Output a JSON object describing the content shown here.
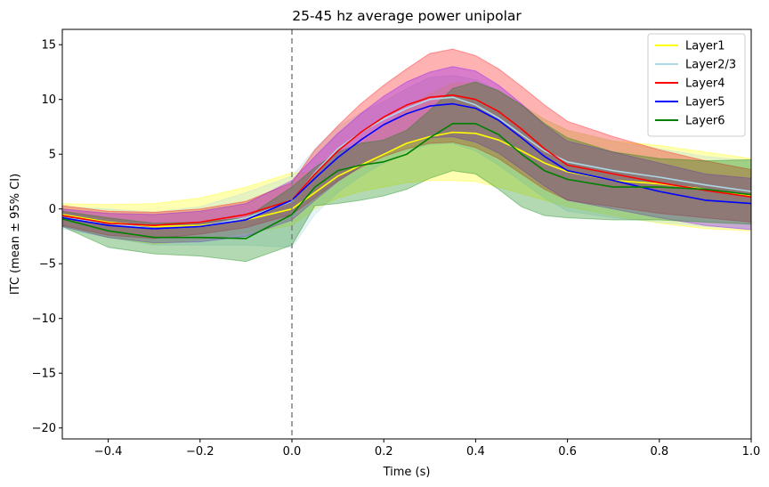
{
  "chart_data": {
    "type": "line",
    "title": "25-45 hz average power unipolar",
    "xlabel": "Time (s)",
    "ylabel": "ITC (mean ± 95% CI)",
    "xlim": [
      -0.5,
      1.0
    ],
    "ylim": [
      -21,
      16.4
    ],
    "xticks": [
      -0.4,
      -0.2,
      0.0,
      0.2,
      0.4,
      0.6,
      0.8,
      1.0
    ],
    "xtick_labels": [
      "−0.4",
      "−0.2",
      "0.0",
      "0.2",
      "0.4",
      "0.6",
      "0.8",
      "1.0"
    ],
    "yticks": [
      15,
      10,
      5,
      0,
      -5,
      -10,
      -15,
      -20
    ],
    "ytick_labels": [
      "15",
      "10",
      "5",
      "0",
      "−5",
      "−10",
      "−15",
      "−20"
    ],
    "grid": false,
    "legend_position": "top-right",
    "vline": {
      "x": 0.0,
      "style": "dashed",
      "color": "#808080"
    },
    "x": [
      -0.5,
      -0.4,
      -0.3,
      -0.2,
      -0.1,
      0.0,
      0.05,
      0.1,
      0.15,
      0.2,
      0.25,
      0.3,
      0.35,
      0.4,
      0.45,
      0.5,
      0.55,
      0.6,
      0.7,
      0.8,
      0.9,
      1.0
    ],
    "series": [
      {
        "name": "Layer1",
        "color": "#ffff00",
        "fill": "#ffff00",
        "fill_opacity": 0.3,
        "mean": [
          -0.5,
          -1.2,
          -1.6,
          -1.5,
          -1.0,
          0.0,
          1.5,
          3.0,
          4.0,
          5.0,
          6.0,
          6.6,
          7.0,
          6.9,
          6.3,
          5.3,
          4.2,
          3.4,
          2.6,
          2.3,
          1.8,
          1.2
        ],
        "lower": [
          -1.5,
          -2.6,
          -3.2,
          -2.8,
          -2.2,
          -1.5,
          0.0,
          1.0,
          1.6,
          2.0,
          2.4,
          2.6,
          2.6,
          2.5,
          2.0,
          1.4,
          0.8,
          0.2,
          -0.6,
          -1.3,
          -1.8,
          -2.0
        ],
        "upper": [
          0.5,
          0.4,
          0.5,
          1.0,
          2.0,
          3.3,
          3.3,
          4.6,
          6.0,
          7.5,
          9.2,
          10.5,
          11.5,
          11.5,
          10.8,
          9.5,
          8.2,
          7.2,
          6.2,
          5.8,
          5.2,
          4.6
        ]
      },
      {
        "name": "Layer2/3",
        "color": "#add8e6",
        "fill": "#add8e6",
        "fill_opacity": 0.3,
        "mean": [
          -0.8,
          -1.3,
          -1.8,
          -1.6,
          -0.8,
          0.7,
          3.3,
          5.5,
          7.0,
          8.2,
          9.2,
          10.0,
          10.2,
          9.5,
          8.3,
          6.8,
          5.3,
          4.3,
          3.5,
          2.9,
          2.2,
          1.6
        ],
        "lower": [
          -1.8,
          -2.6,
          -3.3,
          -3.3,
          -3.3,
          -3.5,
          -0.5,
          1.5,
          3.0,
          4.2,
          5.3,
          5.9,
          6.0,
          5.3,
          4.0,
          2.5,
          1.0,
          -0.2,
          -0.8,
          -1.2,
          -1.6,
          -1.8
        ],
        "upper": [
          0.2,
          0.0,
          -0.3,
          0.2,
          1.5,
          3.0,
          5.5,
          7.5,
          8.8,
          9.8,
          11.0,
          12.0,
          12.2,
          11.8,
          10.8,
          9.5,
          8.2,
          7.2,
          6.2,
          5.5,
          4.8,
          4.4
        ]
      },
      {
        "name": "Layer4",
        "color": "#ff0000",
        "fill": "#ff0000",
        "fill_opacity": 0.3,
        "mean": [
          -0.6,
          -1.3,
          -1.5,
          -1.2,
          -0.5,
          0.8,
          3.2,
          5.3,
          7.0,
          8.4,
          9.5,
          10.2,
          10.4,
          10.0,
          8.9,
          7.3,
          5.5,
          4.0,
          3.2,
          2.4,
          1.7,
          1.1
        ],
        "lower": [
          -1.5,
          -2.4,
          -2.7,
          -2.3,
          -1.7,
          -0.5,
          1.0,
          2.6,
          3.8,
          4.8,
          5.5,
          6.0,
          6.1,
          5.6,
          4.6,
          3.2,
          1.8,
          0.8,
          0.2,
          -0.4,
          -0.8,
          -1.2
        ],
        "upper": [
          0.3,
          -0.2,
          -0.3,
          0.0,
          0.7,
          2.4,
          5.4,
          7.6,
          9.6,
          11.3,
          12.8,
          14.2,
          14.6,
          14.0,
          12.8,
          11.2,
          9.5,
          8.0,
          6.6,
          5.4,
          4.4,
          3.6
        ]
      },
      {
        "name": "Layer5",
        "color": "#0000ff",
        "fill": "#8000ff",
        "fill_opacity": 0.3,
        "mean": [
          -0.8,
          -1.5,
          -1.8,
          -1.6,
          -1.0,
          0.8,
          2.8,
          4.7,
          6.3,
          7.7,
          8.7,
          9.4,
          9.6,
          9.2,
          8.1,
          6.5,
          4.8,
          3.5,
          2.6,
          1.6,
          0.8,
          0.5
        ],
        "lower": [
          -1.6,
          -2.6,
          -3.1,
          -3.0,
          -2.5,
          -1.0,
          0.8,
          2.5,
          3.9,
          5.1,
          6.0,
          6.5,
          6.6,
          6.1,
          5.1,
          3.6,
          2.1,
          0.8,
          0.0,
          -0.8,
          -1.5,
          -1.9
        ],
        "upper": [
          0.0,
          -0.4,
          -0.5,
          -0.2,
          0.5,
          2.6,
          4.8,
          6.9,
          8.7,
          10.3,
          11.6,
          12.5,
          13.0,
          12.6,
          11.3,
          9.6,
          7.7,
          6.2,
          5.2,
          4.2,
          3.2,
          2.8
        ]
      },
      {
        "name": "Layer6",
        "color": "#008000",
        "fill": "#008000",
        "fill_opacity": 0.3,
        "mean": [
          -0.9,
          -2.0,
          -2.6,
          -2.6,
          -2.7,
          -0.5,
          2.0,
          3.5,
          4.0,
          4.3,
          5.0,
          6.5,
          7.8,
          7.8,
          6.8,
          5.0,
          3.5,
          2.7,
          2.0,
          2.0,
          1.8,
          1.3
        ],
        "lower": [
          -1.6,
          -3.5,
          -4.1,
          -4.3,
          -4.8,
          -3.3,
          0.3,
          0.5,
          0.8,
          1.2,
          1.8,
          2.8,
          3.5,
          3.2,
          1.8,
          0.2,
          -0.6,
          -0.8,
          -1.0,
          -1.0,
          -1.2,
          -1.4
        ],
        "upper": [
          -0.2,
          -0.8,
          -1.3,
          -1.2,
          -0.8,
          2.0,
          3.8,
          5.2,
          6.0,
          6.3,
          7.2,
          9.0,
          11.0,
          11.6,
          10.8,
          9.5,
          7.8,
          6.5,
          5.2,
          4.6,
          4.4,
          4.5
        ]
      }
    ]
  }
}
